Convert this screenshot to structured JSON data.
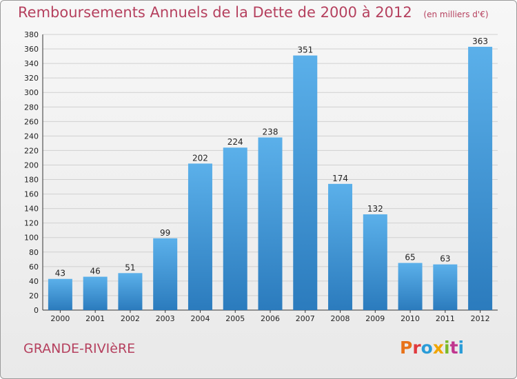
{
  "header": {
    "title": "Remboursements Annuels de la Dette de 2000 à 2012",
    "subtitle": "(en milliers d'€)"
  },
  "footer": {
    "city": "GRANDE-RIVIèRE",
    "logo": "Proxiti"
  },
  "colors": {
    "title": "#b5405e",
    "bar_light": "#5bb0ea",
    "bar_dark": "#2b7bbd",
    "grid": "#d0d0d0",
    "logo_letters": [
      "#e8731a",
      "#e03a3e",
      "#2a9cd8",
      "#f0a500",
      "#7ab929",
      "#c0368f",
      "#2a9cd8"
    ]
  },
  "chart_data": {
    "type": "bar",
    "title": "Remboursements Annuels de la Dette de 2000 à 2012",
    "subtitle": "(en milliers d'€)",
    "xlabel": "",
    "ylabel": "",
    "categories": [
      "2000",
      "2001",
      "2002",
      "2003",
      "2004",
      "2005",
      "2006",
      "2007",
      "2008",
      "2009",
      "2010",
      "2011",
      "2012"
    ],
    "values": [
      43,
      46,
      51,
      99,
      202,
      224,
      238,
      351,
      174,
      132,
      65,
      63,
      363
    ],
    "ylim": [
      0,
      380
    ],
    "ytick_step": 20,
    "grid": true,
    "data_labels": true
  }
}
